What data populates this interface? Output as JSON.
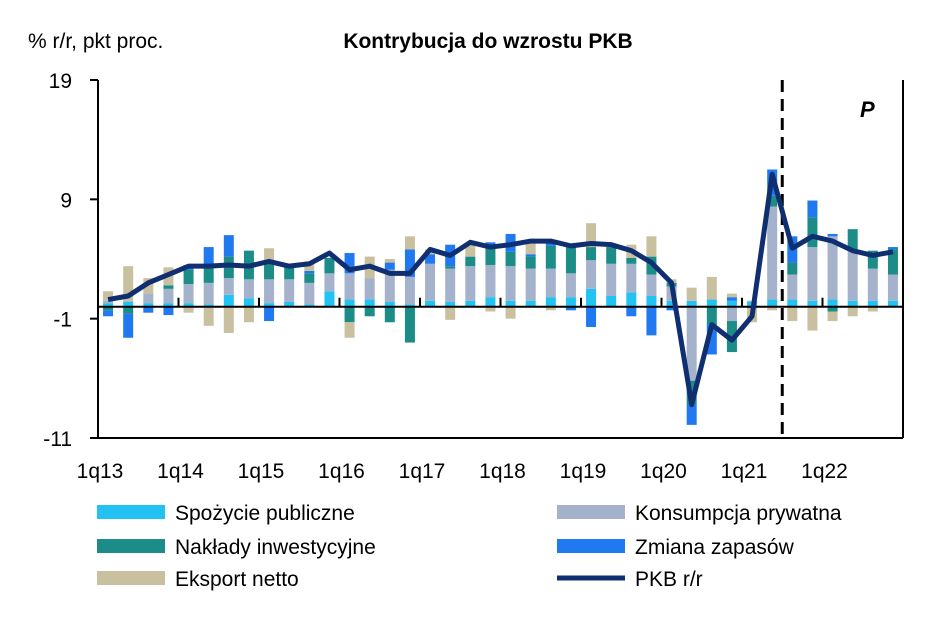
{
  "chart_data": {
    "type": "bar",
    "stacked": true,
    "title": "Kontrybucja do wzrostu PKB",
    "ylabel": "% r/r, pkt proc.",
    "xlabel": "",
    "ylim": [
      -11,
      19
    ],
    "yticks": [
      "19",
      "9",
      "-1",
      "-11"
    ],
    "ytick_values": [
      19,
      9,
      -1,
      -11
    ],
    "grid": false,
    "legend_position": "bottom",
    "forecast_marker": {
      "label": "P",
      "after_category": "2q21"
    },
    "xtick_labels": [
      "1q13",
      "1q14",
      "1q15",
      "1q16",
      "1q17",
      "1q18",
      "1q19",
      "1q20",
      "1q21",
      "1q22"
    ],
    "categories": [
      "1q13",
      "2q13",
      "3q13",
      "4q13",
      "1q14",
      "2q14",
      "3q14",
      "4q14",
      "1q15",
      "2q15",
      "3q15",
      "4q15",
      "1q16",
      "2q16",
      "3q16",
      "4q16",
      "1q17",
      "2q17",
      "3q17",
      "4q17",
      "1q18",
      "2q18",
      "3q18",
      "4q18",
      "1q19",
      "2q19",
      "3q19",
      "4q19",
      "1q20",
      "2q20",
      "3q20",
      "4q20",
      "1q21",
      "2q21",
      "3q21",
      "4q21",
      "1q22",
      "2q22",
      "3q22",
      "4q22"
    ],
    "series": [
      {
        "name": "Spożycie publiczne",
        "color": "#22c3f2",
        "type": "bar",
        "values": [
          0.3,
          0.4,
          0.3,
          0.3,
          0.3,
          0.2,
          1.0,
          0.7,
          0.3,
          0.4,
          0.2,
          1.3,
          0.6,
          0.6,
          0.4,
          0.2,
          0.5,
          0.4,
          0.5,
          0.8,
          0.5,
          0.5,
          0.8,
          0.8,
          1.5,
          0.9,
          1.2,
          0.9,
          0.5,
          0.5,
          0.6,
          0.5,
          0.4,
          0.6,
          0.6,
          0.5,
          0.6,
          0.5,
          0.5,
          0.5
        ]
      },
      {
        "name": "Konsumpcja prywatna",
        "color": "#a4b2cc",
        "type": "bar",
        "values": [
          0.2,
          0.1,
          0.8,
          1.2,
          1.6,
          1.8,
          1.4,
          1.6,
          2.0,
          1.9,
          1.8,
          1.5,
          2.2,
          1.8,
          2.7,
          2.3,
          3.1,
          2.8,
          2.9,
          2.7,
          2.9,
          2.7,
          2.4,
          2.0,
          2.4,
          2.7,
          2.4,
          1.8,
          1.2,
          -6.2,
          0.0,
          -1.2,
          0.1,
          7.8,
          2.1,
          4.5,
          5.3,
          4.2,
          2.7,
          2.2
        ]
      },
      {
        "name": "Nakłady inwestycyjne",
        "color": "#1b8c87",
        "type": "bar",
        "values": [
          -0.3,
          -0.6,
          0.0,
          0.3,
          1.2,
          1.5,
          1.8,
          2.4,
          1.5,
          1.0,
          0.8,
          1.3,
          -1.3,
          -0.8,
          -1.3,
          -3.0,
          0.0,
          0.2,
          0.8,
          1.5,
          1.2,
          1.0,
          1.9,
          2.2,
          1.1,
          1.4,
          0.5,
          1.5,
          0.3,
          -2.0,
          -1.5,
          -2.6,
          -0.1,
          0.9,
          1.0,
          2.5,
          -0.4,
          1.8,
          1.5,
          2.1
        ]
      },
      {
        "name": "Zmiana zapasów",
        "color": "#2079f0",
        "type": "bar",
        "values": [
          -0.5,
          -2.0,
          -0.5,
          -0.7,
          0.4,
          1.5,
          1.8,
          0.0,
          -1.2,
          0.0,
          0.2,
          0.0,
          1.7,
          0.0,
          0.6,
          2.3,
          0.8,
          1.8,
          0.0,
          0.4,
          1.5,
          0.2,
          0.3,
          -0.3,
          -1.7,
          0.0,
          -0.8,
          -2.4,
          -0.3,
          -1.7,
          -2.5,
          0.3,
          0.0,
          2.2,
          2.2,
          1.4,
          0.2,
          0.0,
          0.0,
          0.2
        ]
      },
      {
        "name": "Eksport netto",
        "color": "#c9c0a0",
        "type": "bar",
        "values": [
          0.8,
          2.9,
          1.3,
          1.5,
          -0.5,
          -1.6,
          -2.2,
          -1.3,
          1.1,
          0.0,
          0.8,
          0.0,
          -1.3,
          1.8,
          0.3,
          1.1,
          0.4,
          -1.1,
          1.0,
          -0.4,
          -1.0,
          0.9,
          -0.3,
          0.0,
          2.0,
          0.0,
          1.1,
          1.7,
          0.3,
          1.1,
          1.9,
          0.3,
          -1.2,
          -0.3,
          -1.2,
          -2.0,
          -0.8,
          -0.8,
          -0.4,
          0.0
        ]
      },
      {
        "name": "PKB r/r",
        "color": "#102f70",
        "type": "line",
        "values": [
          0.6,
          0.9,
          2.0,
          2.7,
          3.4,
          3.4,
          3.5,
          3.4,
          3.8,
          3.4,
          3.6,
          4.5,
          3.1,
          3.4,
          2.8,
          2.8,
          4.8,
          4.3,
          5.4,
          5.0,
          5.2,
          5.5,
          5.5,
          5.1,
          5.3,
          5.2,
          4.7,
          3.7,
          2.0,
          -8.2,
          -1.5,
          -2.8,
          -0.8,
          11.1,
          4.9,
          5.9,
          5.5,
          4.7,
          4.3,
          4.6
        ]
      }
    ]
  }
}
